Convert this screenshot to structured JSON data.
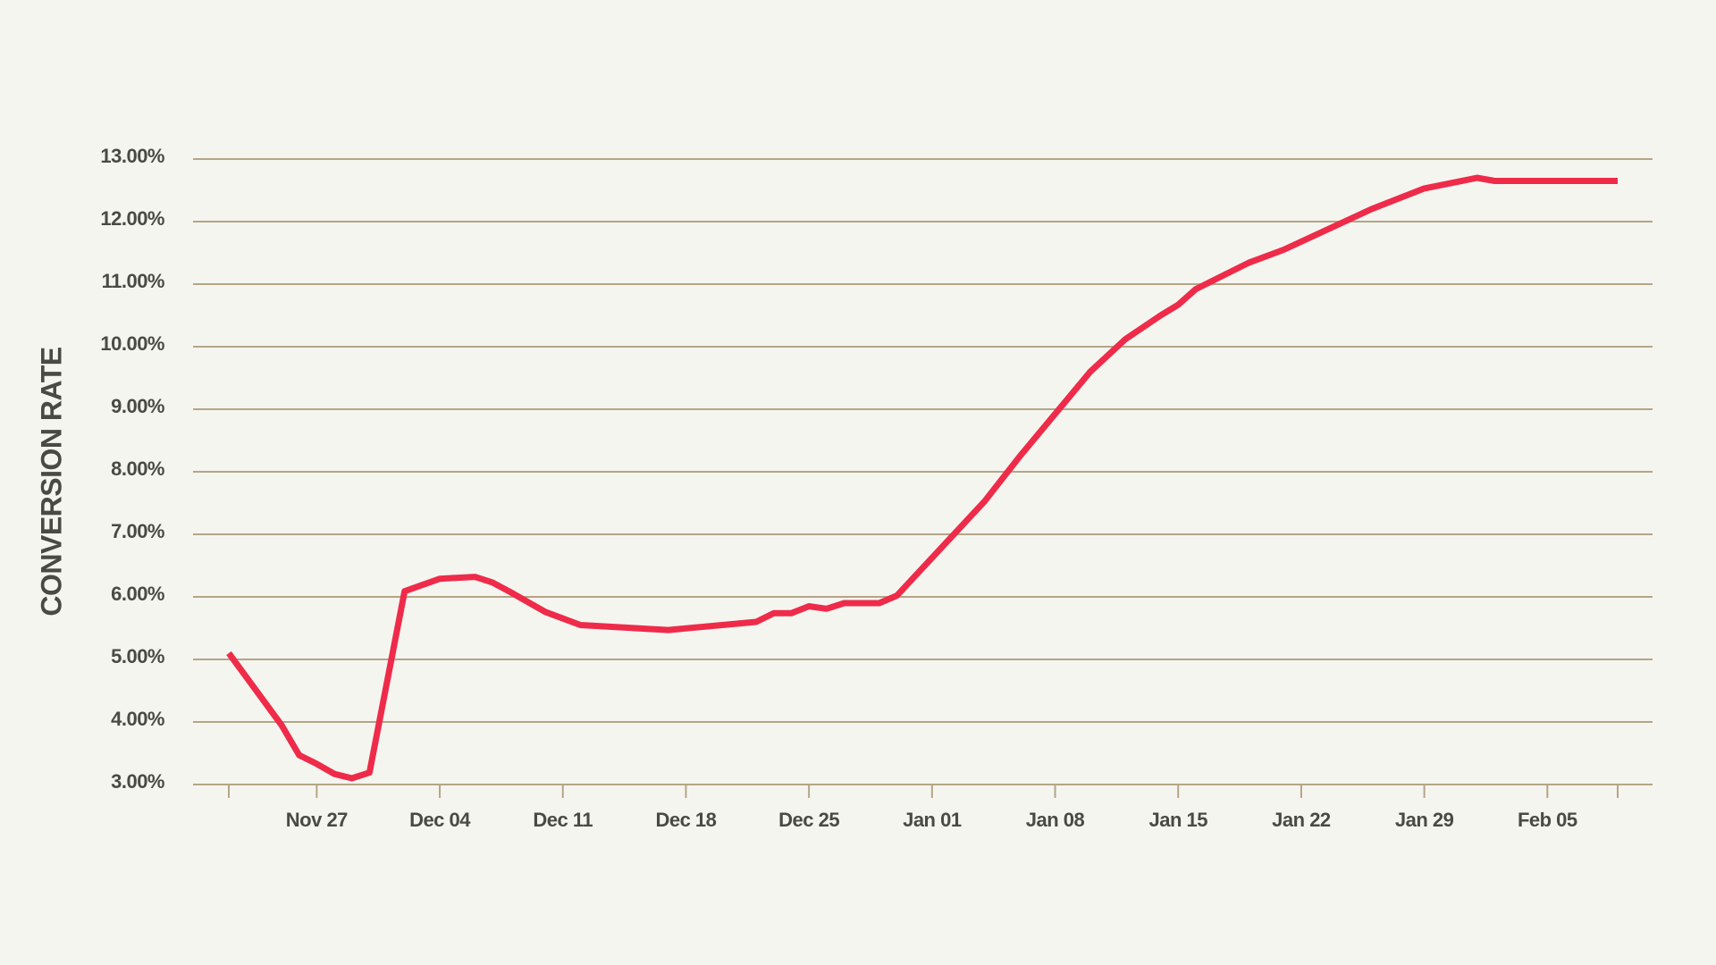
{
  "chart_data": {
    "type": "line",
    "y_label": "CONVERSION RATE",
    "color": "#ef2b4a",
    "grid": true,
    "x": [
      "Nov 22",
      "Nov 25",
      "Nov 26",
      "Nov 27",
      "Nov 28",
      "Nov 29",
      "Nov 30",
      "Dec 02",
      "Dec 04",
      "Dec 06",
      "Dec 07",
      "Dec 08",
      "Dec 10",
      "Dec 12",
      "Dec 17",
      "Dec 22",
      "Dec 23",
      "Dec 24",
      "Dec 25",
      "Dec 26",
      "Dec 27",
      "Dec 29",
      "Dec 30",
      "Jan 04",
      "Jan 06",
      "Jan 10",
      "Jan 12",
      "Jan 14",
      "Jan 15",
      "Jan 16",
      "Jan 19",
      "Jan 21",
      "Jan 26",
      "Jan 29",
      "Feb 01",
      "Feb 02",
      "Feb 09"
    ],
    "values": [
      5.1,
      3.95,
      3.47,
      3.33,
      3.17,
      3.1,
      3.19,
      6.09,
      6.29,
      6.32,
      6.23,
      6.08,
      5.76,
      5.55,
      5.47,
      5.6,
      5.74,
      5.74,
      5.85,
      5.81,
      5.9,
      5.9,
      6.02,
      7.53,
      8.25,
      9.6,
      10.12,
      10.5,
      10.67,
      10.92,
      11.34,
      11.55,
      12.2,
      12.53,
      12.7,
      12.65,
      12.65
    ],
    "xlim": [
      "Nov 22",
      "Feb 09"
    ],
    "xticks": [
      "Nov 27",
      "Dec 04",
      "Dec 11",
      "Dec 18",
      "Dec 25",
      "Jan 01",
      "Jan 08",
      "Jan 15",
      "Jan 22",
      "Jan 29",
      "Feb 05"
    ],
    "ylim": [
      3,
      13
    ],
    "yticks": [
      {
        "value": 3,
        "label": "3.00%"
      },
      {
        "value": 4,
        "label": "4.00%"
      },
      {
        "value": 5,
        "label": "5.00%"
      },
      {
        "value": 6,
        "label": "6.00%"
      },
      {
        "value": 7,
        "label": "7.00%"
      },
      {
        "value": 8,
        "label": "8.00%"
      },
      {
        "value": 9,
        "label": "9.00%"
      },
      {
        "value": 10,
        "label": "10.00%"
      },
      {
        "value": 11,
        "label": "11.00%"
      },
      {
        "value": 12,
        "label": "12.00%"
      },
      {
        "value": 13,
        "label": "13.00%"
      }
    ]
  }
}
